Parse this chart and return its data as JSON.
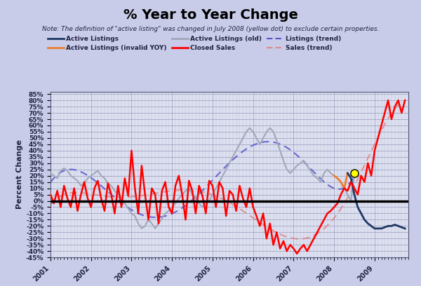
{
  "title": "% Year to Year Change",
  "note": "Note: The definition of \"active listing\" was changed in July 2008 (yellow dot) to exclude certain properties.",
  "ylabel": "Percent Change",
  "bg_color": "#c8cce8",
  "plot_bg_color": "#dde0f0",
  "ylim": [
    -0.45,
    0.87
  ],
  "yticks": [
    -0.45,
    -0.4,
    -0.35,
    -0.3,
    -0.25,
    -0.2,
    -0.15,
    -0.1,
    -0.05,
    0.0,
    0.05,
    0.1,
    0.15,
    0.2,
    0.25,
    0.3,
    0.35,
    0.4,
    0.45,
    0.5,
    0.55,
    0.6,
    0.65,
    0.7,
    0.75,
    0.8,
    0.85
  ],
  "ytick_labels": [
    "-45%",
    "-40%",
    "-35%",
    "-30%",
    "-25%",
    "-20%",
    "-15%",
    "-10%",
    "-5%",
    "0%",
    "5%",
    "10%",
    "15%",
    "20%",
    "25%",
    "30%",
    "35%",
    "40%",
    "45%",
    "50%",
    "55%",
    "60%",
    "65%",
    "70%",
    "75%",
    "80%",
    "85%"
  ],
  "active_listings_color": "#1f3864",
  "active_listings_invalid_color": "#ed7d31",
  "active_listings_old_color": "#a0a8b8",
  "closed_sales_color": "#ff0000",
  "listings_trend_color": "#5555cc",
  "sales_trend_color": "#dd8888",
  "months_active_old": [
    0,
    1,
    2,
    3,
    4,
    5,
    6,
    7,
    8,
    9,
    10,
    11,
    12,
    13,
    14,
    15,
    16,
    17,
    18,
    19,
    20,
    21,
    22,
    23,
    24,
    25,
    26,
    27,
    28,
    29,
    30,
    31,
    32,
    33,
    34,
    35,
    36,
    37,
    38,
    39,
    40,
    41,
    42,
    43,
    44,
    45,
    46,
    47,
    48,
    49,
    50,
    51,
    52,
    53,
    54,
    55,
    56,
    57,
    58,
    59,
    60,
    61,
    62,
    63,
    64,
    65,
    66,
    67,
    68,
    69,
    70,
    71,
    72,
    73,
    74,
    75,
    76,
    77,
    78,
    79,
    80,
    81,
    82,
    83,
    84,
    85,
    86,
    87,
    88,
    89,
    90
  ],
  "values_active_old": [
    0.22,
    0.2,
    0.18,
    0.24,
    0.26,
    0.24,
    0.2,
    0.18,
    0.16,
    0.12,
    0.14,
    0.18,
    0.2,
    0.22,
    0.24,
    0.2,
    0.18,
    0.14,
    0.12,
    0.08,
    0.05,
    0.02,
    -0.02,
    -0.06,
    -0.1,
    -0.12,
    -0.18,
    -0.22,
    -0.2,
    -0.15,
    -0.18,
    -0.22,
    -0.18,
    -0.14,
    -0.1,
    -0.08,
    -0.05,
    -0.02,
    0.02,
    0.05,
    0.08,
    0.1,
    0.05,
    0.02,
    -0.02,
    -0.05,
    -0.02,
    0.0,
    0.05,
    0.1,
    0.15,
    0.2,
    0.25,
    0.3,
    0.35,
    0.4,
    0.45,
    0.5,
    0.55,
    0.58,
    0.55,
    0.5,
    0.45,
    0.5,
    0.55,
    0.58,
    0.55,
    0.48,
    0.4,
    0.32,
    0.25,
    0.22,
    0.25,
    0.28,
    0.3,
    0.32,
    0.28,
    0.24,
    0.2,
    0.18,
    0.15,
    0.22,
    0.25,
    0.22,
    0.2,
    0.18,
    0.15,
    0.1,
    0.05,
    0.0,
    0.22
  ],
  "months_active_listings": [
    88,
    89,
    90,
    91,
    92,
    93,
    94,
    95,
    96,
    97,
    98,
    99,
    100,
    101,
    102,
    103,
    104,
    105
  ],
  "values_active_listings": [
    0.22,
    0.18,
    0.05,
    -0.05,
    -0.1,
    -0.15,
    -0.18,
    -0.2,
    -0.22,
    -0.22,
    -0.22,
    -0.21,
    -0.2,
    -0.2,
    -0.19,
    -0.2,
    -0.21,
    -0.22
  ],
  "months_active_invalid": [
    84,
    85,
    86,
    87,
    88
  ],
  "values_active_invalid": [
    0.2,
    0.18,
    0.15,
    0.1,
    0.22
  ],
  "months_closed": [
    0,
    1,
    2,
    3,
    4,
    5,
    6,
    7,
    8,
    9,
    10,
    11,
    12,
    13,
    14,
    15,
    16,
    17,
    18,
    19,
    20,
    21,
    22,
    23,
    24,
    25,
    26,
    27,
    28,
    29,
    30,
    31,
    32,
    33,
    34,
    35,
    36,
    37,
    38,
    39,
    40,
    41,
    42,
    43,
    44,
    45,
    46,
    47,
    48,
    49,
    50,
    51,
    52,
    53,
    54,
    55,
    56,
    57,
    58,
    59,
    60,
    61,
    62,
    63,
    64,
    65,
    66,
    67,
    68,
    69,
    70,
    71,
    72,
    73,
    74,
    75,
    76,
    77,
    78,
    79,
    80,
    81,
    82,
    83,
    84,
    85,
    86,
    87,
    88,
    89,
    90,
    91,
    92,
    93,
    94,
    95,
    96,
    97,
    98,
    99,
    100,
    101,
    102,
    103,
    104,
    105
  ],
  "values_closed": [
    0.05,
    -0.02,
    0.08,
    -0.05,
    0.12,
    0.02,
    -0.05,
    0.1,
    -0.08,
    0.05,
    0.15,
    0.02,
    -0.05,
    0.1,
    0.16,
    0.02,
    -0.08,
    0.14,
    0.05,
    -0.1,
    0.12,
    -0.05,
    0.18,
    0.04,
    0.4,
    0.1,
    -0.1,
    0.28,
    0.05,
    -0.15,
    0.1,
    0.05,
    -0.18,
    0.08,
    0.15,
    -0.05,
    -0.1,
    0.12,
    0.2,
    0.05,
    -0.15,
    0.16,
    0.08,
    -0.1,
    0.12,
    0.04,
    -0.1,
    0.16,
    0.12,
    -0.05,
    0.15,
    0.1,
    -0.12,
    0.08,
    0.05,
    -0.08,
    0.12,
    0.02,
    -0.05,
    0.1,
    -0.05,
    -0.12,
    -0.2,
    -0.1,
    -0.3,
    -0.18,
    -0.35,
    -0.25,
    -0.38,
    -0.32,
    -0.4,
    -0.35,
    -0.38,
    -0.42,
    -0.38,
    -0.35,
    -0.4,
    -0.35,
    -0.3,
    -0.25,
    -0.2,
    -0.15,
    -0.1,
    -0.08,
    -0.05,
    -0.02,
    0.05,
    0.1,
    0.08,
    0.15,
    0.1,
    0.05,
    0.2,
    0.15,
    0.3,
    0.2,
    0.4,
    0.5,
    0.6,
    0.7,
    0.8,
    0.65,
    0.75,
    0.8,
    0.7,
    0.8
  ],
  "yellow_dot_month": 90,
  "yellow_dot_value": 0.22,
  "x_start_year": 2001,
  "x_end_year": 2009,
  "total_months": 106
}
